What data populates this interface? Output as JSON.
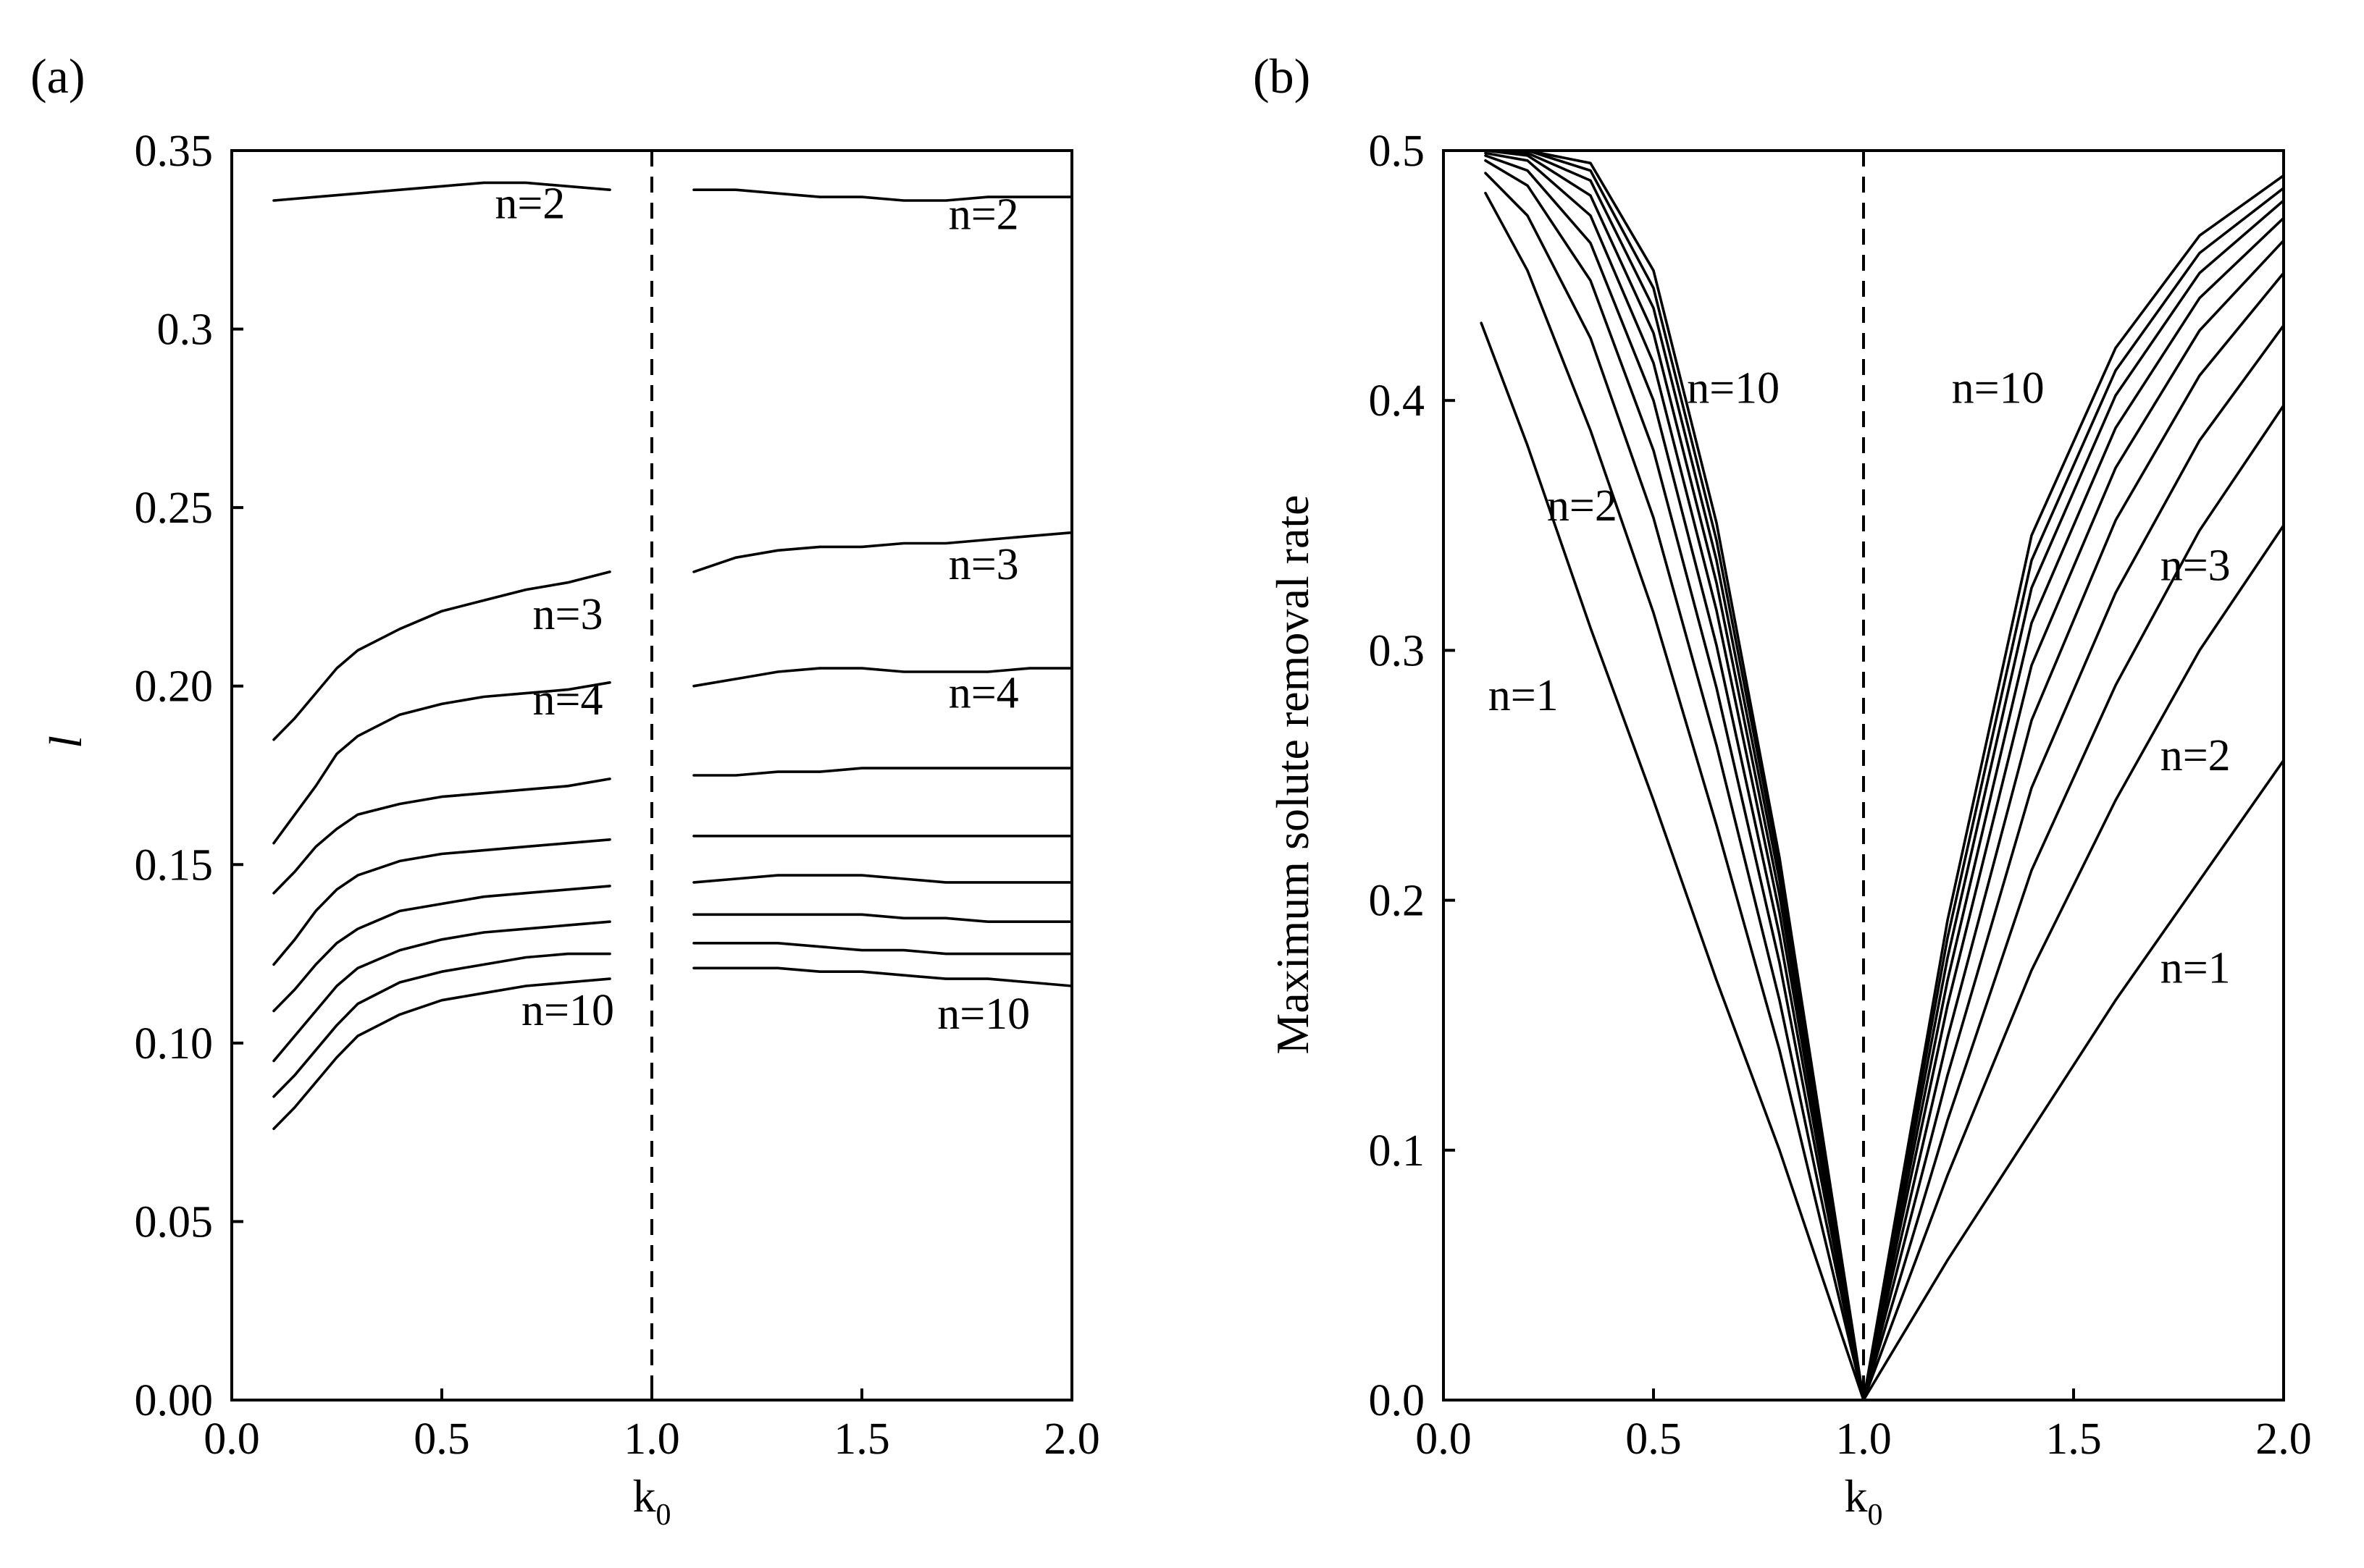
{
  "chart_data": [
    {
      "panel": "(a)",
      "type": "line",
      "xlabel": "k",
      "xlabel_subscript": "0",
      "ylabel": "l",
      "xlim": [
        0.0,
        2.0
      ],
      "ylim": [
        0.0,
        0.35
      ],
      "xticks": [
        "0.0",
        "0.5",
        "1.0",
        "1.5",
        "2.0"
      ],
      "yticks": [
        "0.00",
        "0.05",
        "0.10",
        "0.15",
        "0.20",
        "0.25",
        "0.3",
        "0.35"
      ],
      "vline_x": 1.0,
      "annotations": [
        {
          "text": "n=2",
          "x": 0.71,
          "y": 0.331
        },
        {
          "text": "n=2",
          "x": 1.79,
          "y": 0.328
        },
        {
          "text": "n=3",
          "x": 0.8,
          "y": 0.216
        },
        {
          "text": "n=3",
          "x": 1.79,
          "y": 0.23
        },
        {
          "text": "n=4",
          "x": 0.8,
          "y": 0.192
        },
        {
          "text": "n=4",
          "x": 1.79,
          "y": 0.194
        },
        {
          "text": "n=10",
          "x": 0.8,
          "y": 0.105
        },
        {
          "text": "n=10",
          "x": 1.79,
          "y": 0.104
        }
      ],
      "series": [
        {
          "name": "n=2 (k0<1)",
          "x": [
            0.1,
            0.2,
            0.3,
            0.4,
            0.5,
            0.6,
            0.7,
            0.8,
            0.9
          ],
          "y": [
            0.336,
            0.337,
            0.338,
            0.339,
            0.34,
            0.341,
            0.341,
            0.34,
            0.339
          ]
        },
        {
          "name": "n=2 (k0>1)",
          "x": [
            1.1,
            1.2,
            1.3,
            1.4,
            1.5,
            1.6,
            1.7,
            1.8,
            1.9,
            2.0
          ],
          "y": [
            0.339,
            0.339,
            0.338,
            0.337,
            0.337,
            0.336,
            0.336,
            0.337,
            0.337,
            0.337
          ]
        },
        {
          "name": "n=3 (k0<1)",
          "x": [
            0.1,
            0.15,
            0.2,
            0.25,
            0.3,
            0.4,
            0.5,
            0.6,
            0.7,
            0.8,
            0.9
          ],
          "y": [
            0.185,
            0.191,
            0.198,
            0.205,
            0.21,
            0.216,
            0.221,
            0.224,
            0.227,
            0.229,
            0.232
          ]
        },
        {
          "name": "n=3 (k0>1)",
          "x": [
            1.1,
            1.2,
            1.3,
            1.4,
            1.5,
            1.6,
            1.7,
            1.8,
            1.9,
            2.0
          ],
          "y": [
            0.232,
            0.236,
            0.238,
            0.239,
            0.239,
            0.24,
            0.24,
            0.241,
            0.242,
            0.243
          ]
        },
        {
          "name": "n=4 (k0<1)",
          "x": [
            0.1,
            0.15,
            0.2,
            0.25,
            0.3,
            0.4,
            0.5,
            0.6,
            0.7,
            0.8,
            0.9
          ],
          "y": [
            0.156,
            0.164,
            0.172,
            0.181,
            0.186,
            0.192,
            0.195,
            0.197,
            0.198,
            0.199,
            0.201
          ]
        },
        {
          "name": "n=4 (k0>1)",
          "x": [
            1.1,
            1.2,
            1.3,
            1.4,
            1.5,
            1.6,
            1.7,
            1.8,
            1.9,
            2.0
          ],
          "y": [
            0.2,
            0.202,
            0.204,
            0.205,
            0.205,
            0.204,
            0.204,
            0.204,
            0.205,
            0.205
          ]
        },
        {
          "name": "n=5 (k0<1)",
          "x": [
            0.1,
            0.15,
            0.2,
            0.25,
            0.3,
            0.4,
            0.5,
            0.6,
            0.7,
            0.8,
            0.9
          ],
          "y": [
            0.142,
            0.148,
            0.155,
            0.16,
            0.164,
            0.167,
            0.169,
            0.17,
            0.171,
            0.172,
            0.174
          ]
        },
        {
          "name": "n=5 (k0>1)",
          "x": [
            1.1,
            1.2,
            1.3,
            1.4,
            1.5,
            1.6,
            1.7,
            1.8,
            1.9,
            2.0
          ],
          "y": [
            0.175,
            0.175,
            0.176,
            0.176,
            0.177,
            0.177,
            0.177,
            0.177,
            0.177,
            0.177
          ]
        },
        {
          "name": "n=6 (k0<1)",
          "x": [
            0.1,
            0.15,
            0.2,
            0.25,
            0.3,
            0.4,
            0.5,
            0.6,
            0.7,
            0.8,
            0.9
          ],
          "y": [
            0.122,
            0.129,
            0.137,
            0.143,
            0.147,
            0.151,
            0.153,
            0.154,
            0.155,
            0.156,
            0.157
          ]
        },
        {
          "name": "n=6 (k0>1)",
          "x": [
            1.1,
            1.2,
            1.3,
            1.4,
            1.5,
            1.6,
            1.7,
            1.8,
            1.9,
            2.0
          ],
          "y": [
            0.158,
            0.158,
            0.158,
            0.158,
            0.158,
            0.158,
            0.158,
            0.158,
            0.158,
            0.158
          ]
        },
        {
          "name": "n=7 (k0<1)",
          "x": [
            0.1,
            0.15,
            0.2,
            0.25,
            0.3,
            0.4,
            0.5,
            0.6,
            0.7,
            0.8,
            0.9
          ],
          "y": [
            0.109,
            0.115,
            0.122,
            0.128,
            0.132,
            0.137,
            0.139,
            0.141,
            0.142,
            0.143,
            0.144
          ]
        },
        {
          "name": "n=7 (k0>1)",
          "x": [
            1.1,
            1.2,
            1.3,
            1.4,
            1.5,
            1.6,
            1.7,
            1.8,
            1.9,
            2.0
          ],
          "y": [
            0.145,
            0.146,
            0.147,
            0.147,
            0.147,
            0.146,
            0.145,
            0.145,
            0.145,
            0.145
          ]
        },
        {
          "name": "n=8 (k0<1)",
          "x": [
            0.1,
            0.15,
            0.2,
            0.25,
            0.3,
            0.4,
            0.5,
            0.6,
            0.7,
            0.8,
            0.9
          ],
          "y": [
            0.095,
            0.102,
            0.109,
            0.116,
            0.121,
            0.126,
            0.129,
            0.131,
            0.132,
            0.133,
            0.134
          ]
        },
        {
          "name": "n=8 (k0>1)",
          "x": [
            1.1,
            1.2,
            1.3,
            1.4,
            1.5,
            1.6,
            1.7,
            1.8,
            1.9,
            2.0
          ],
          "y": [
            0.136,
            0.136,
            0.136,
            0.136,
            0.136,
            0.135,
            0.135,
            0.134,
            0.134,
            0.134
          ]
        },
        {
          "name": "n=9 (k0<1)",
          "x": [
            0.1,
            0.15,
            0.2,
            0.25,
            0.3,
            0.4,
            0.5,
            0.6,
            0.7,
            0.8,
            0.9
          ],
          "y": [
            0.085,
            0.091,
            0.098,
            0.105,
            0.111,
            0.117,
            0.12,
            0.122,
            0.124,
            0.125,
            0.125
          ]
        },
        {
          "name": "n=9 (k0>1)",
          "x": [
            1.1,
            1.2,
            1.3,
            1.4,
            1.5,
            1.6,
            1.7,
            1.8,
            1.9,
            2.0
          ],
          "y": [
            0.128,
            0.128,
            0.128,
            0.127,
            0.126,
            0.126,
            0.125,
            0.125,
            0.125,
            0.125
          ]
        },
        {
          "name": "n=10 (k0<1)",
          "x": [
            0.1,
            0.15,
            0.2,
            0.25,
            0.3,
            0.4,
            0.5,
            0.6,
            0.7,
            0.8,
            0.9
          ],
          "y": [
            0.076,
            0.082,
            0.089,
            0.096,
            0.102,
            0.108,
            0.112,
            0.114,
            0.116,
            0.117,
            0.118
          ]
        },
        {
          "name": "n=10 (k0>1)",
          "x": [
            1.1,
            1.2,
            1.3,
            1.4,
            1.5,
            1.6,
            1.7,
            1.8,
            1.9,
            2.0
          ],
          "y": [
            0.121,
            0.121,
            0.121,
            0.12,
            0.12,
            0.119,
            0.118,
            0.118,
            0.117,
            0.116
          ]
        }
      ]
    },
    {
      "panel": "(b)",
      "type": "line",
      "xlabel": "k",
      "xlabel_subscript": "0",
      "ylabel": "Maximum solute removal rate",
      "xlim": [
        0.0,
        2.0
      ],
      "ylim": [
        0.0,
        0.5
      ],
      "xticks": [
        "0.0",
        "0.5",
        "1.0",
        "1.5",
        "2.0"
      ],
      "yticks": [
        "0.0",
        "0.1",
        "0.2",
        "0.3",
        "0.4",
        "0.5"
      ],
      "vline_x": 1.0,
      "annotations": [
        {
          "text": "n=10",
          "x": 0.69,
          "y": 0.399
        },
        {
          "text": "n=10",
          "x": 1.32,
          "y": 0.399
        },
        {
          "text": "n=2",
          "x": 0.33,
          "y": 0.352
        },
        {
          "text": "n=1",
          "x": 0.19,
          "y": 0.276
        },
        {
          "text": "n=3",
          "x": 1.79,
          "y": 0.328
        },
        {
          "text": "n=2",
          "x": 1.79,
          "y": 0.252
        },
        {
          "text": "n=1",
          "x": 1.79,
          "y": 0.167
        }
      ],
      "series": [
        {
          "name": "n=1",
          "x": [
            0.09,
            0.2,
            0.35,
            0.5,
            0.65,
            0.8,
            1.0,
            1.2,
            1.4,
            1.6,
            1.8,
            2.0
          ],
          "y": [
            0.431,
            0.382,
            0.309,
            0.24,
            0.168,
            0.1,
            0.0,
            0.056,
            0.108,
            0.16,
            0.208,
            0.256
          ]
        },
        {
          "name": "n=2",
          "x": [
            0.1,
            0.2,
            0.35,
            0.5,
            0.65,
            0.8,
            1.0,
            1.2,
            1.4,
            1.6,
            1.8,
            2.0
          ],
          "y": [
            0.483,
            0.452,
            0.388,
            0.315,
            0.23,
            0.14,
            0.0,
            0.09,
            0.172,
            0.24,
            0.3,
            0.35
          ]
        },
        {
          "name": "n=3",
          "x": [
            0.1,
            0.2,
            0.35,
            0.5,
            0.65,
            0.8,
            1.0,
            1.2,
            1.4,
            1.6,
            1.8,
            2.0
          ],
          "y": [
            0.491,
            0.474,
            0.425,
            0.353,
            0.262,
            0.16,
            0.0,
            0.112,
            0.212,
            0.286,
            0.348,
            0.398
          ]
        },
        {
          "name": "n=4",
          "x": [
            0.1,
            0.2,
            0.35,
            0.5,
            0.65,
            0.8,
            1.0,
            1.2,
            1.4,
            1.6,
            1.8,
            2.0
          ],
          "y": [
            0.496,
            0.486,
            0.448,
            0.38,
            0.285,
            0.175,
            0.0,
            0.13,
            0.245,
            0.323,
            0.384,
            0.43
          ]
        },
        {
          "name": "n=5",
          "x": [
            0.1,
            0.2,
            0.35,
            0.5,
            0.65,
            0.8,
            1.0,
            1.2,
            1.4,
            1.6,
            1.8,
            2.0
          ],
          "y": [
            0.498,
            0.492,
            0.463,
            0.4,
            0.302,
            0.186,
            0.0,
            0.145,
            0.272,
            0.352,
            0.41,
            0.451
          ]
        },
        {
          "name": "n=6",
          "x": [
            0.1,
            0.2,
            0.35,
            0.5,
            0.65,
            0.8,
            1.0,
            1.2,
            1.4,
            1.6,
            1.8,
            2.0
          ],
          "y": [
            0.499,
            0.496,
            0.474,
            0.415,
            0.316,
            0.195,
            0.0,
            0.158,
            0.294,
            0.373,
            0.428,
            0.464
          ]
        },
        {
          "name": "n=7",
          "x": [
            0.1,
            0.2,
            0.35,
            0.5,
            0.65,
            0.8,
            1.0,
            1.2,
            1.4,
            1.6,
            1.8,
            2.0
          ],
          "y": [
            0.5,
            0.498,
            0.482,
            0.427,
            0.327,
            0.202,
            0.0,
            0.168,
            0.311,
            0.389,
            0.441,
            0.473
          ]
        },
        {
          "name": "n=8",
          "x": [
            0.1,
            0.2,
            0.35,
            0.5,
            0.65,
            0.8,
            1.0,
            1.2,
            1.4,
            1.6,
            1.8,
            2.0
          ],
          "y": [
            0.5,
            0.499,
            0.488,
            0.437,
            0.336,
            0.208,
            0.0,
            0.177,
            0.325,
            0.402,
            0.451,
            0.48
          ]
        },
        {
          "name": "n=9",
          "x": [
            0.1,
            0.2,
            0.35,
            0.5,
            0.65,
            0.8,
            1.0,
            1.2,
            1.4,
            1.6,
            1.8,
            2.0
          ],
          "y": [
            0.5,
            0.5,
            0.492,
            0.445,
            0.344,
            0.213,
            0.0,
            0.185,
            0.336,
            0.412,
            0.459,
            0.485
          ]
        },
        {
          "name": "n=10",
          "x": [
            0.1,
            0.2,
            0.35,
            0.5,
            0.65,
            0.8,
            1.0,
            1.2,
            1.4,
            1.6,
            1.8,
            2.0
          ],
          "y": [
            0.5,
            0.5,
            0.495,
            0.452,
            0.351,
            0.217,
            0.0,
            0.192,
            0.346,
            0.421,
            0.466,
            0.49
          ]
        }
      ]
    }
  ]
}
